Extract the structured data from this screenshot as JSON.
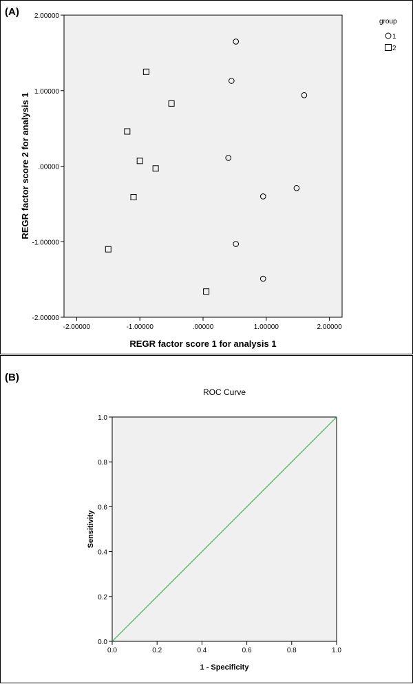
{
  "chart_data": [
    {
      "type": "scatter",
      "panel_label": "(A)",
      "title": "",
      "xlabel": "REGR factor score   1 for analysis 1",
      "ylabel": "REGR factor score   2 for analysis 1",
      "xlim": [
        -2.2,
        2.2
      ],
      "ylim": [
        -2.0,
        2.0
      ],
      "xticks": [
        -2.0,
        -1.0,
        0.0,
        1.0,
        2.0
      ],
      "xtick_labels": [
        "-2.00000",
        "-1.00000",
        ".00000",
        "1.00000",
        "2.00000"
      ],
      "yticks": [
        -2.0,
        -1.0,
        0.0,
        1.0,
        2.0
      ],
      "ytick_labels": [
        "-2.00000",
        "-1.00000",
        ".00000",
        "1.00000",
        "2.00000"
      ],
      "grid": false,
      "legend": {
        "title": "group",
        "placement": "top-right outside"
      },
      "series": [
        {
          "name": "1",
          "marker": "circle",
          "points": [
            [
              0.52,
              1.65
            ],
            [
              0.45,
              1.13
            ],
            [
              1.6,
              0.94
            ],
            [
              0.4,
              0.11
            ],
            [
              1.48,
              -0.29
            ],
            [
              0.95,
              -0.4
            ],
            [
              0.52,
              -1.03
            ],
            [
              0.95,
              -1.49
            ]
          ]
        },
        {
          "name": "2",
          "marker": "square",
          "points": [
            [
              -0.9,
              1.25
            ],
            [
              -0.5,
              0.83
            ],
            [
              -1.2,
              0.46
            ],
            [
              -1.0,
              0.07
            ],
            [
              -0.75,
              -0.03
            ],
            [
              -1.1,
              -0.41
            ],
            [
              -1.5,
              -1.1
            ],
            [
              0.05,
              -1.66
            ]
          ]
        }
      ]
    },
    {
      "type": "line",
      "panel_label": "(B)",
      "title": "ROC Curve",
      "xlabel": "1 - Specificity",
      "ylabel": "Sensitivity",
      "xlim": [
        0,
        1
      ],
      "ylim": [
        0,
        1
      ],
      "xticks": [
        0,
        0.2,
        0.4,
        0.6,
        0.8,
        1.0
      ],
      "xtick_labels": [
        "0.0",
        "0.2",
        "0.4",
        "0.6",
        "0.8",
        "1.0"
      ],
      "yticks": [
        0,
        0.2,
        0.4,
        0.6,
        0.8,
        1.0
      ],
      "ytick_labels": [
        "0.0",
        "0.2",
        "0.4",
        "0.6",
        "0.8",
        "1.0"
      ],
      "grid": false,
      "line_color": "#3cb043",
      "series": [
        {
          "x": [
            0,
            1
          ],
          "y": [
            0,
            1
          ]
        }
      ]
    }
  ],
  "colors": {
    "plot_background": "#f0f0f0",
    "frame": "#000000",
    "marker": "#000000"
  }
}
